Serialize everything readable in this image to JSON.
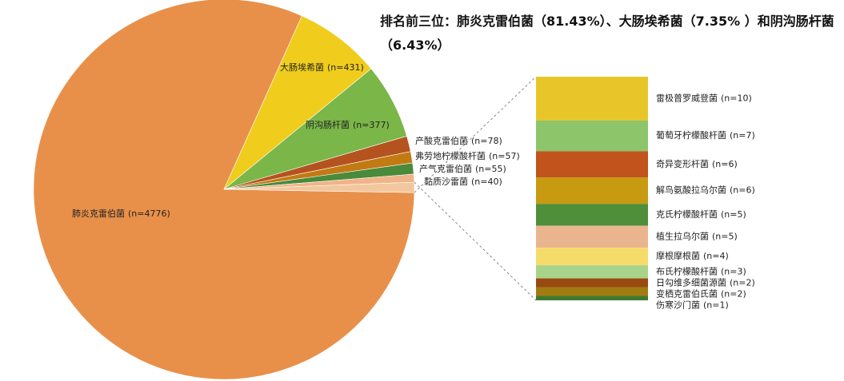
{
  "chart_data": {
    "type": "pie",
    "title": "排名前三位：肺炎克雷伯菌（81.43%）、大肠埃希菌（7.35% ）和阴沟肠杆菌（6.43%）",
    "categories": [
      "肺炎克雷伯菌",
      "大肠埃希菌",
      "阴沟肠杆菌",
      "产酸克雷伯菌",
      "弗劳地柠檬酸杆菌",
      "产气克雷伯菌",
      "黏质沙雷菌",
      null
    ],
    "values": [
      4776,
      431,
      377,
      78,
      57,
      55,
      40,
      51
    ],
    "value_labels": [
      "(n=4776)",
      "(n=431)",
      "(n=377)",
      "(n=78)",
      "(n=57)",
      "(n=55)",
      "(n=40)",
      null
    ],
    "colors": [
      "#e8904a",
      "#f0cc1c",
      "#7ab648",
      "#b5531f",
      "#c27a12",
      "#4a8a3a",
      "#f0b488",
      "#f3c79e"
    ],
    "bar_of_pie": {
      "categories": [
        "雷极普罗威登菌",
        "葡萄牙柠檬酸杆菌",
        "奇异变形杆菌",
        "解鸟氨酸拉乌尔菌",
        "克氏柠檬酸杆菌",
        "植生拉乌尔菌",
        "摩根摩根菌",
        "布氏柠檬酸杆菌",
        "日勾维多细菌源菌",
        "变栖克雷伯氏菌",
        "伤寒沙门菌"
      ],
      "values": [
        10,
        7,
        6,
        6,
        5,
        5,
        4,
        3,
        2,
        2,
        1
      ],
      "value_labels": [
        "(n=10)",
        "(n=7)",
        "(n=6)",
        "(n=6)",
        "(n=5)",
        "(n=5)",
        "(n=4)",
        "(n=3)",
        "(n=2)",
        "(n=2)",
        "(n=1)"
      ],
      "colors": [
        "#e8c62a",
        "#8cc56a",
        "#c0541c",
        "#c79a10",
        "#4f8f3a",
        "#eab58e",
        "#f5dc6a",
        "#a8d38a",
        "#9a4a10",
        "#a07b10",
        "#3f7a30"
      ]
    }
  }
}
